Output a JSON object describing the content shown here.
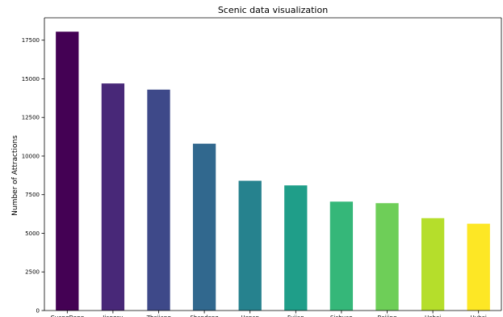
{
  "chart_data": {
    "type": "bar",
    "title": "Scenic data visualization",
    "xlabel": "",
    "ylabel": "Number of Attractions",
    "categories": [
      "GuangDong",
      "Jiangsu",
      "Zhejiang",
      "Shandong",
      "Henan",
      "Fujian",
      "Sichuan",
      "Beijing",
      "Hebei",
      "Hubei"
    ],
    "values": [
      18050,
      14700,
      14300,
      10800,
      8400,
      8100,
      7050,
      6950,
      5980,
      5620
    ],
    "colors": [
      "#440154",
      "#482878",
      "#3e4989",
      "#31688e",
      "#26828e",
      "#1f9e89",
      "#35b779",
      "#6ece58",
      "#b5de2b",
      "#fde725"
    ],
    "ylim": [
      0,
      18950
    ],
    "yticks": [
      0,
      2500,
      5000,
      7500,
      10000,
      12500,
      15000,
      17500
    ],
    "grid": false,
    "legend": "none"
  }
}
